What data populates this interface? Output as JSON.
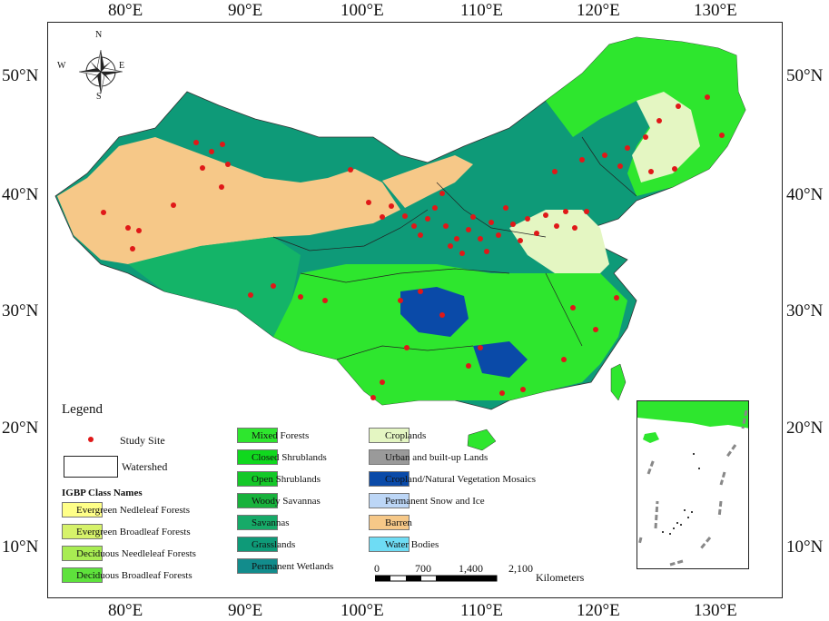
{
  "axes": {
    "top_lon": [
      "80°E",
      "90°E",
      "100°E",
      "110°E",
      "120°E",
      "130°E"
    ],
    "bottom_lon": [
      "80°E",
      "90°E",
      "100°E",
      "110°E",
      "120°E",
      "130°E"
    ],
    "left_lat": [
      "50°N",
      "40°N",
      "30°N",
      "20°N",
      "10°N"
    ],
    "right_lat": [
      "50°N",
      "40°N",
      "30°N",
      "20°N",
      "10°N"
    ]
  },
  "compass": {
    "n": "N",
    "s": "S",
    "e": "E",
    "w": "W"
  },
  "legend": {
    "title": "Legend",
    "study_site": "Study Site",
    "watershed": "Watershed",
    "igbp_title": "IGBP Class Names",
    "classes_col1": [
      {
        "label": "Evergreen Nedleleaf Forests",
        "color": "#ffff88"
      },
      {
        "label": "Evergreen Broadleaf Forests",
        "color": "#d6f26a"
      },
      {
        "label": "Deciduous Needleleaf Forests",
        "color": "#a8ec52"
      },
      {
        "label": "Deciduous Broadleaf Forests",
        "color": "#5ee23c"
      }
    ],
    "classes_col2": [
      {
        "label": "Mixed Forests",
        "color": "#2ee62e"
      },
      {
        "label": "Closed Shrublands",
        "color": "#10d81e"
      },
      {
        "label": "Open Shrublands",
        "color": "#14c828"
      },
      {
        "label": "Woody Savannas",
        "color": "#18b23c"
      },
      {
        "label": "Savannas",
        "color": "#16aa68"
      },
      {
        "label": "Grasslands",
        "color": "#0e9a78"
      },
      {
        "label": "Permanent Wetlands",
        "color": "#128c8c"
      }
    ],
    "classes_col3": [
      {
        "label": "Croplands",
        "color": "#e4f6c2"
      },
      {
        "label": "Urban and built-up Lands",
        "color": "#9a9a9a"
      },
      {
        "label": "Cropland/Natural Vegetation Mosaics",
        "color": "#0a4aa8"
      },
      {
        "label": "Permanent Snow and Ice",
        "color": "#bcd6f6"
      },
      {
        "label": "Barren",
        "color": "#f6c888"
      },
      {
        "label": "Water Bodies",
        "color": "#6edcf4"
      }
    ]
  },
  "scale_bar": {
    "ticks": [
      "0",
      "700",
      "1,400",
      "2,100"
    ],
    "unit": "Kilometers"
  },
  "colors": {
    "study_site": "#e01818",
    "grassland": "#0e9a78",
    "barren": "#f6c888",
    "forest": "#2ee62e"
  }
}
